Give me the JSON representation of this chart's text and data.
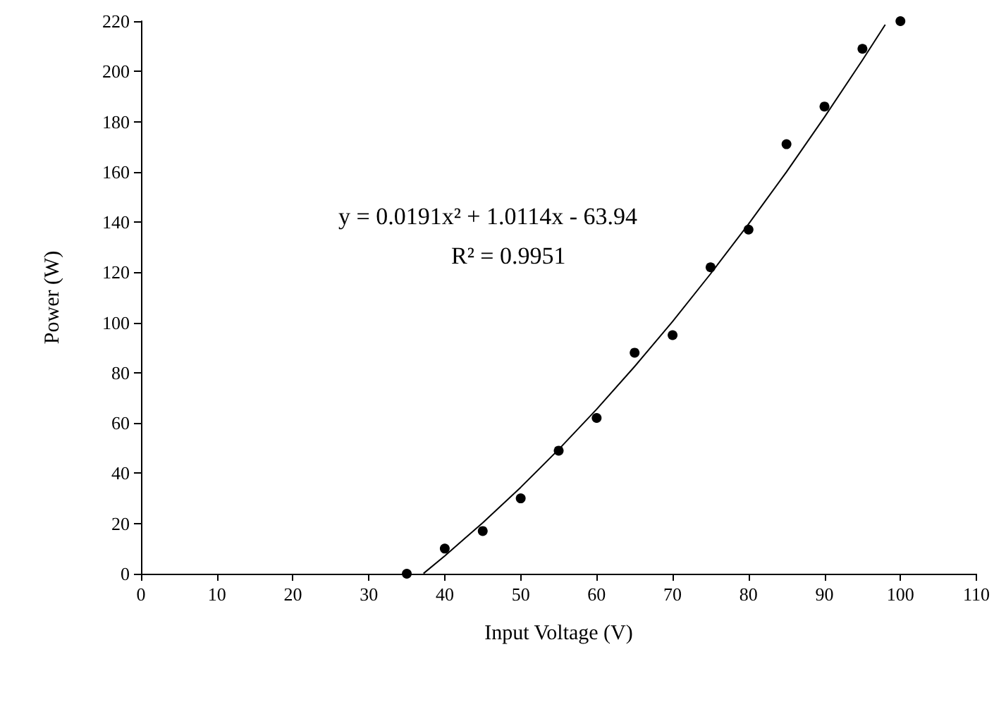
{
  "chart_data": {
    "type": "scatter",
    "xlabel": "Input Voltage (V)",
    "ylabel": "Power (W)",
    "annotations": [
      "y = 0.0191x² + 1.0114x - 63.94",
      "R² = 0.9951"
    ],
    "series": [
      {
        "color": "#000000",
        "x": [
          35,
          40,
          45,
          50,
          55,
          60,
          65,
          70,
          75,
          80,
          85,
          90,
          95,
          100
        ],
        "values": [
          0,
          10,
          17,
          30,
          49,
          62,
          88,
          95,
          122,
          137,
          171,
          186,
          209,
          220
        ]
      },
      {
        "type": "line",
        "color": "#000000",
        "marker": "none",
        "x": [
          37.2,
          40,
          45,
          50,
          55,
          60,
          65,
          70,
          75,
          80,
          85,
          90,
          95,
          98
        ],
        "values": [
          0.1,
          7.1,
          20.3,
          34.4,
          49.5,
          65.5,
          82.5,
          100.4,
          119.4,
          139.2,
          160,
          181.8,
          204.5,
          218.6
        ]
      }
    ],
    "xlim": [
      0,
      110
    ],
    "xticks": [
      0,
      10,
      20,
      30,
      40,
      50,
      60,
      70,
      80,
      90,
      100,
      110
    ],
    "ylim": [
      0,
      220
    ],
    "yticks": [
      0,
      20,
      40,
      60,
      80,
      100,
      120,
      140,
      160,
      180,
      200,
      220
    ],
    "grid": false,
    "marker": "circle",
    "line_style": "solid"
  }
}
